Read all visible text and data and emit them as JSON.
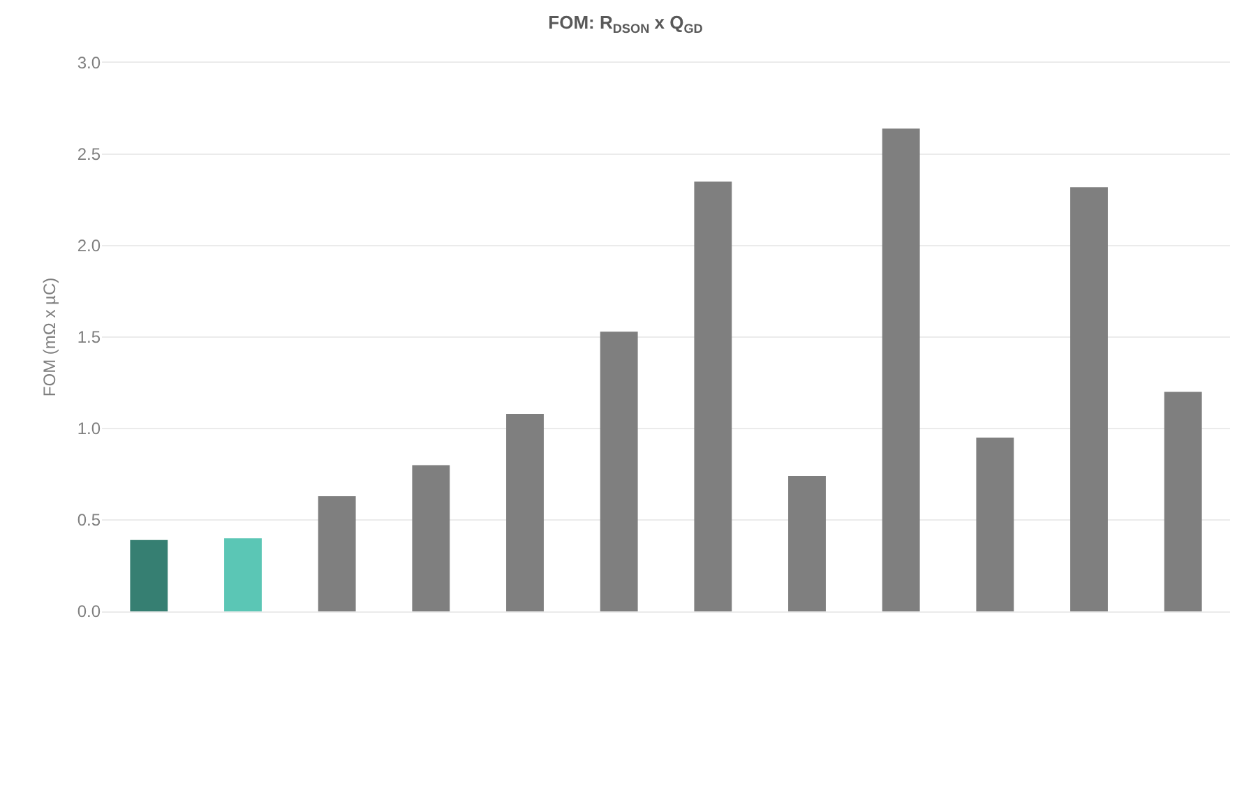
{
  "chart_data": {
    "type": "bar",
    "title": "FOM: R$_{DSON}$ x Q$_{GD}$",
    "ylabel": "FOM (mΩ x µC)",
    "categories": [
      null,
      null,
      null,
      null,
      null,
      null,
      null,
      null,
      null,
      null,
      null,
      null
    ],
    "values": [
      0.39,
      0.4,
      0.63,
      0.8,
      1.08,
      1.53,
      2.35,
      0.74,
      2.64,
      0.95,
      2.32,
      1.2
    ],
    "colors": [
      "#367f72",
      "#5bc6b5",
      "#7f7f7f",
      "#7f7f7f",
      "#7f7f7f",
      "#7f7f7f",
      "#7f7f7f",
      "#7f7f7f",
      "#7f7f7f",
      "#7f7f7f",
      "#7f7f7f",
      "#7f7f7f"
    ],
    "ylim": [
      0,
      3
    ],
    "yticks": [
      {
        "value": 0,
        "label": "0.0"
      },
      0.5,
      {
        "value": 1,
        "label": "1.0"
      },
      1.5,
      {
        "value": 2,
        "label": "2.0"
      },
      2.5,
      {
        "value": 3,
        "label": "3.0"
      }
    ],
    "grid": "y",
    "tick_labels": "y"
  }
}
